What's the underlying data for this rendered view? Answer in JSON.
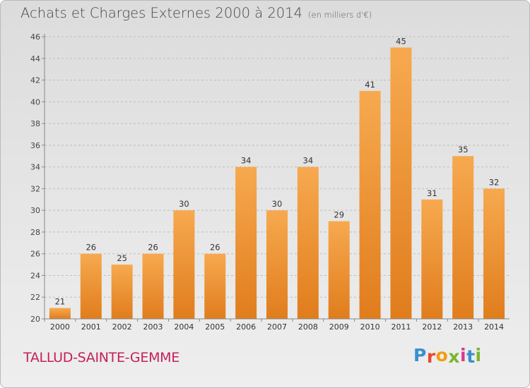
{
  "header": {
    "title": "Achats et Charges Externes 2000 à 2014",
    "unit": "(en milliers d'€)"
  },
  "footer": {
    "commune": "TALLUD-SAINTE-GEMME",
    "logo_letters": [
      "P",
      "r",
      "o",
      "x",
      "i",
      "t",
      "i"
    ],
    "logo_colors": [
      "#3a8fd0",
      "#e9472e",
      "#f39c12",
      "#7ab52f",
      "#d63a8a",
      "#3a8fd0",
      "#7ab52f"
    ]
  },
  "colors": {
    "bar_top": "#f7a94f",
    "bar_bottom": "#e07d1d",
    "commune": "#c3205b"
  },
  "chart_data": {
    "type": "bar",
    "title": "Achats et Charges Externes 2000 à 2014",
    "subtitle": "(en milliers d'€)",
    "xlabel": "",
    "ylabel": "",
    "categories": [
      "2000",
      "2001",
      "2002",
      "2003",
      "2004",
      "2005",
      "2006",
      "2007",
      "2008",
      "2009",
      "2010",
      "2011",
      "2012",
      "2013",
      "2014"
    ],
    "values": [
      21,
      26,
      25,
      26,
      30,
      26,
      34,
      30,
      34,
      29,
      41,
      45,
      31,
      35,
      32
    ],
    "ylim": [
      20,
      46
    ],
    "yticks": [
      20,
      22,
      24,
      26,
      28,
      30,
      32,
      34,
      36,
      38,
      40,
      42,
      44,
      46
    ],
    "grid": true,
    "data_labels": true
  }
}
